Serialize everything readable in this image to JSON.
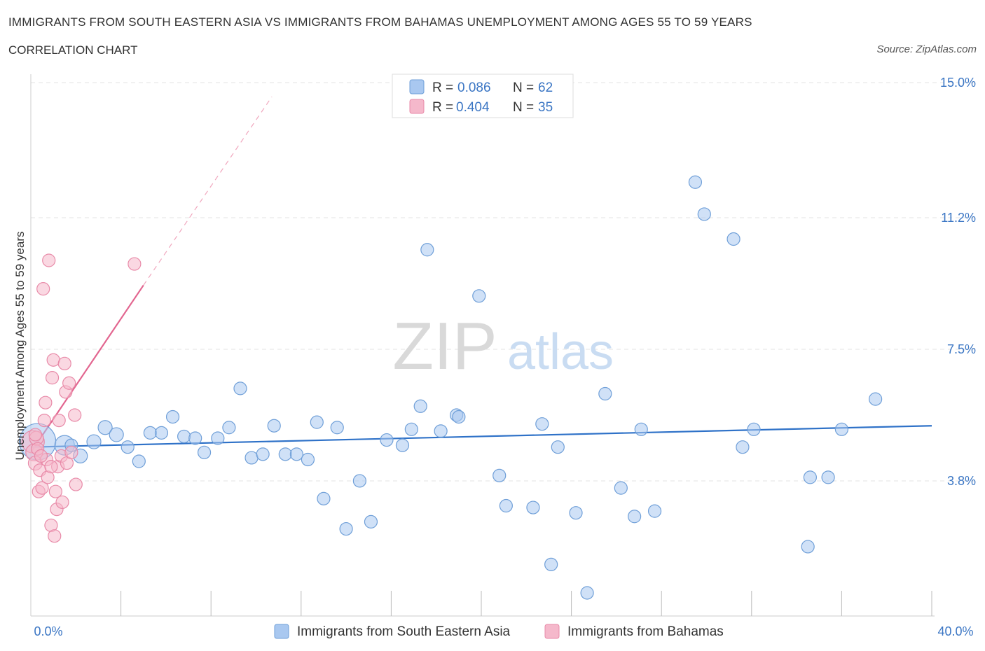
{
  "header": {
    "title": "IMMIGRANTS FROM SOUTH EASTERN ASIA VS IMMIGRANTS FROM BAHAMAS UNEMPLOYMENT AMONG AGES 55 TO 59 YEARS",
    "subtitle": "CORRELATION CHART",
    "source": "Source: ZipAtlas.com"
  },
  "watermark": {
    "zip": "ZIP",
    "atlas": "atlas"
  },
  "chart_data": {
    "type": "scatter",
    "ylabel": "Unemployment Among Ages 55 to 59 years",
    "xlim": [
      0,
      40
    ],
    "ylim": [
      0,
      15
    ],
    "x_tick_labels": [
      "0.0%",
      "40.0%"
    ],
    "y_ticks": [
      3.8,
      7.5,
      11.2,
      15.0
    ],
    "y_tick_labels": [
      "3.8%",
      "7.5%",
      "11.2%",
      "15.0%"
    ],
    "grid": true,
    "legend_placement": "top-center",
    "stats": [
      {
        "r_label": "R = ",
        "r_value": "0.086",
        "n_label": "N = ",
        "n_value": "62",
        "color": "#a9c8f0"
      },
      {
        "r_label": "R = ",
        "r_value": "0.404",
        "n_label": "N = ",
        "n_value": "35",
        "color": "#f5b8cb"
      }
    ],
    "series": [
      {
        "name": "Immigrants from South Eastern Asia",
        "color": "#a9c8f0",
        "stroke": "#6f9fd8",
        "trend_color": "#2f72c8",
        "trend": [
          [
            0,
            4.75
          ],
          [
            40,
            5.35
          ]
        ],
        "points": [
          [
            0.3,
            4.9
          ],
          [
            1.5,
            4.8
          ],
          [
            2.2,
            4.5
          ],
          [
            2.8,
            4.9
          ],
          [
            3.3,
            5.3
          ],
          [
            3.8,
            5.1
          ],
          [
            4.3,
            4.75
          ],
          [
            4.8,
            4.35
          ],
          [
            5.3,
            5.15
          ],
          [
            5.8,
            5.15
          ],
          [
            6.3,
            5.6
          ],
          [
            6.8,
            5.05
          ],
          [
            7.3,
            5.0
          ],
          [
            7.7,
            4.6
          ],
          [
            8.3,
            5.0
          ],
          [
            8.8,
            5.3
          ],
          [
            9.3,
            6.4
          ],
          [
            9.8,
            4.45
          ],
          [
            10.3,
            4.55
          ],
          [
            10.8,
            5.35
          ],
          [
            11.3,
            4.55
          ],
          [
            11.8,
            4.55
          ],
          [
            12.3,
            4.4
          ],
          [
            12.7,
            5.45
          ],
          [
            13.0,
            3.3
          ],
          [
            13.6,
            5.3
          ],
          [
            14.0,
            2.45
          ],
          [
            14.6,
            3.8
          ],
          [
            15.1,
            2.65
          ],
          [
            15.8,
            4.95
          ],
          [
            16.5,
            4.8
          ],
          [
            16.9,
            5.25
          ],
          [
            17.3,
            5.9
          ],
          [
            17.6,
            10.3
          ],
          [
            18.2,
            5.2
          ],
          [
            18.9,
            5.65
          ],
          [
            19.0,
            5.6
          ],
          [
            19.9,
            9.0
          ],
          [
            20.8,
            3.95
          ],
          [
            21.1,
            3.1
          ],
          [
            22.3,
            3.05
          ],
          [
            22.7,
            5.4
          ],
          [
            23.1,
            1.45
          ],
          [
            23.4,
            4.75
          ],
          [
            24.2,
            2.9
          ],
          [
            24.7,
            0.65
          ],
          [
            25.5,
            6.25
          ],
          [
            26.2,
            3.6
          ],
          [
            26.8,
            2.8
          ],
          [
            27.1,
            5.25
          ],
          [
            27.7,
            2.95
          ],
          [
            29.5,
            12.2
          ],
          [
            29.9,
            11.3
          ],
          [
            31.2,
            10.6
          ],
          [
            31.6,
            4.75
          ],
          [
            32.1,
            5.25
          ],
          [
            34.5,
            1.95
          ],
          [
            34.6,
            3.9
          ],
          [
            35.4,
            3.9
          ],
          [
            37.5,
            6.1
          ],
          [
            36.0,
            5.25
          ],
          [
            1.8,
            4.8
          ]
        ],
        "sizes": [
          26,
          14,
          10,
          10,
          10,
          10,
          9,
          9,
          9,
          9,
          9,
          9,
          9,
          9,
          9,
          9,
          9,
          9,
          9,
          9,
          9,
          9,
          9,
          9,
          9,
          9,
          9,
          9,
          9,
          9,
          9,
          9,
          9,
          9,
          9,
          9,
          9,
          9,
          9,
          9,
          9,
          9,
          9,
          9,
          9,
          9,
          9,
          9,
          9,
          9,
          9,
          9,
          9,
          9,
          9,
          9,
          9,
          9,
          9,
          9,
          9,
          9
        ]
      },
      {
        "name": "Immigrants from Bahamas",
        "color": "#f5b8cb",
        "stroke": "#e88aa8",
        "trend_color": "#e2658f",
        "trend": [
          [
            0,
            4.6
          ],
          [
            5.0,
            9.3
          ]
        ],
        "trend_ext": [
          [
            5.0,
            9.3
          ],
          [
            10.7,
            14.6
          ]
        ],
        "points": [
          [
            0.1,
            4.9
          ],
          [
            0.15,
            4.6
          ],
          [
            0.2,
            4.3
          ],
          [
            0.25,
            5.0
          ],
          [
            0.3,
            4.7
          ],
          [
            0.35,
            3.5
          ],
          [
            0.4,
            4.1
          ],
          [
            0.5,
            3.6
          ],
          [
            0.55,
            9.2
          ],
          [
            0.6,
            5.5
          ],
          [
            0.65,
            6.0
          ],
          [
            0.7,
            4.4
          ],
          [
            0.75,
            3.9
          ],
          [
            0.8,
            10.0
          ],
          [
            0.9,
            2.55
          ],
          [
            0.95,
            6.7
          ],
          [
            1.0,
            7.2
          ],
          [
            1.05,
            2.25
          ],
          [
            1.1,
            3.5
          ],
          [
            1.15,
            3.0
          ],
          [
            1.2,
            4.2
          ],
          [
            1.25,
            5.5
          ],
          [
            1.35,
            4.5
          ],
          [
            1.4,
            3.2
          ],
          [
            1.5,
            7.1
          ],
          [
            1.55,
            6.3
          ],
          [
            1.6,
            4.3
          ],
          [
            1.7,
            6.55
          ],
          [
            1.8,
            4.6
          ],
          [
            1.95,
            5.65
          ],
          [
            2.0,
            3.7
          ],
          [
            4.6,
            9.9
          ],
          [
            0.2,
            5.1
          ],
          [
            0.45,
            4.5
          ],
          [
            0.9,
            4.2
          ]
        ],
        "sizes": [
          16,
          12,
          10,
          10,
          9,
          9,
          9,
          9,
          9,
          9,
          9,
          9,
          9,
          9,
          9,
          9,
          9,
          9,
          9,
          9,
          9,
          9,
          9,
          9,
          9,
          9,
          9,
          9,
          9,
          9,
          9,
          9,
          9,
          9,
          9
        ]
      }
    ]
  }
}
